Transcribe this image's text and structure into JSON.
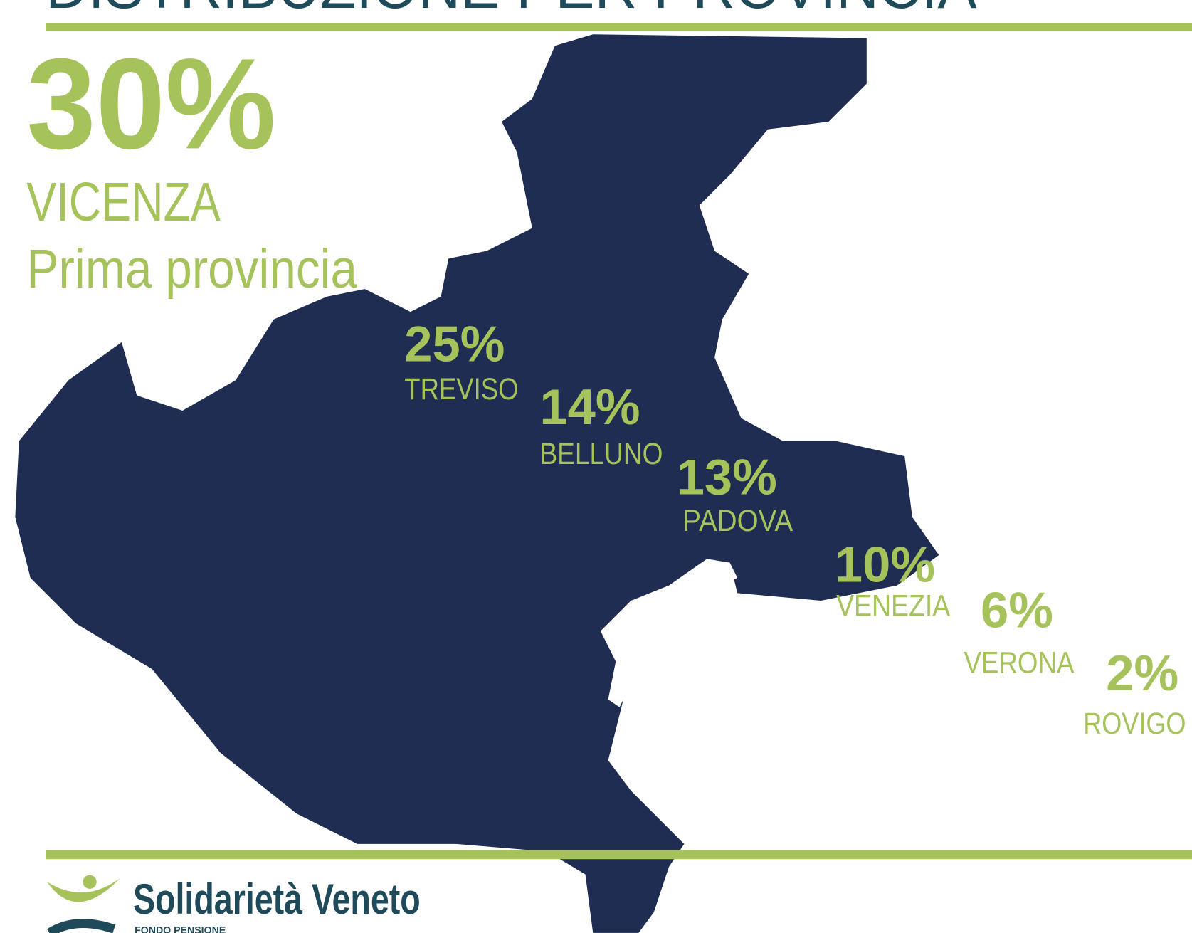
{
  "header": {
    "title": "DISTRIBUZIONE PER PROVINCIA"
  },
  "highlight": {
    "value": "30%",
    "province": "VICENZA",
    "note": "Prima provincia"
  },
  "provinces": [
    {
      "value": "25%",
      "name": "TREVISO"
    },
    {
      "value": "14%",
      "name": "BELLUNO"
    },
    {
      "value": "13%",
      "name": "PADOVA"
    },
    {
      "value": "10%",
      "name": "VENEZIA"
    },
    {
      "value": "6%",
      "name": "VERONA"
    },
    {
      "value": "2%",
      "name": "ROVIGO"
    }
  ],
  "logo": {
    "name": "Solidarietà Veneto",
    "subtitle": "FONDO PENSIONE"
  }
}
